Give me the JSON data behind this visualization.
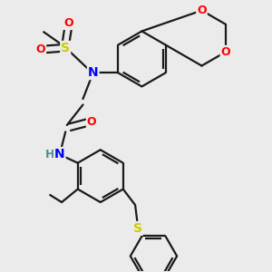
{
  "background_color": "#ebebeb",
  "bond_color": "#1a1a1a",
  "atom_colors": {
    "N": "#0000ff",
    "O": "#ff0000",
    "S_sulfonyl": "#cccc00",
    "S_thio": "#cccc00",
    "H": "#4a9090",
    "C": "#1a1a1a"
  },
  "figsize": [
    3.0,
    3.0
  ],
  "dpi": 100
}
